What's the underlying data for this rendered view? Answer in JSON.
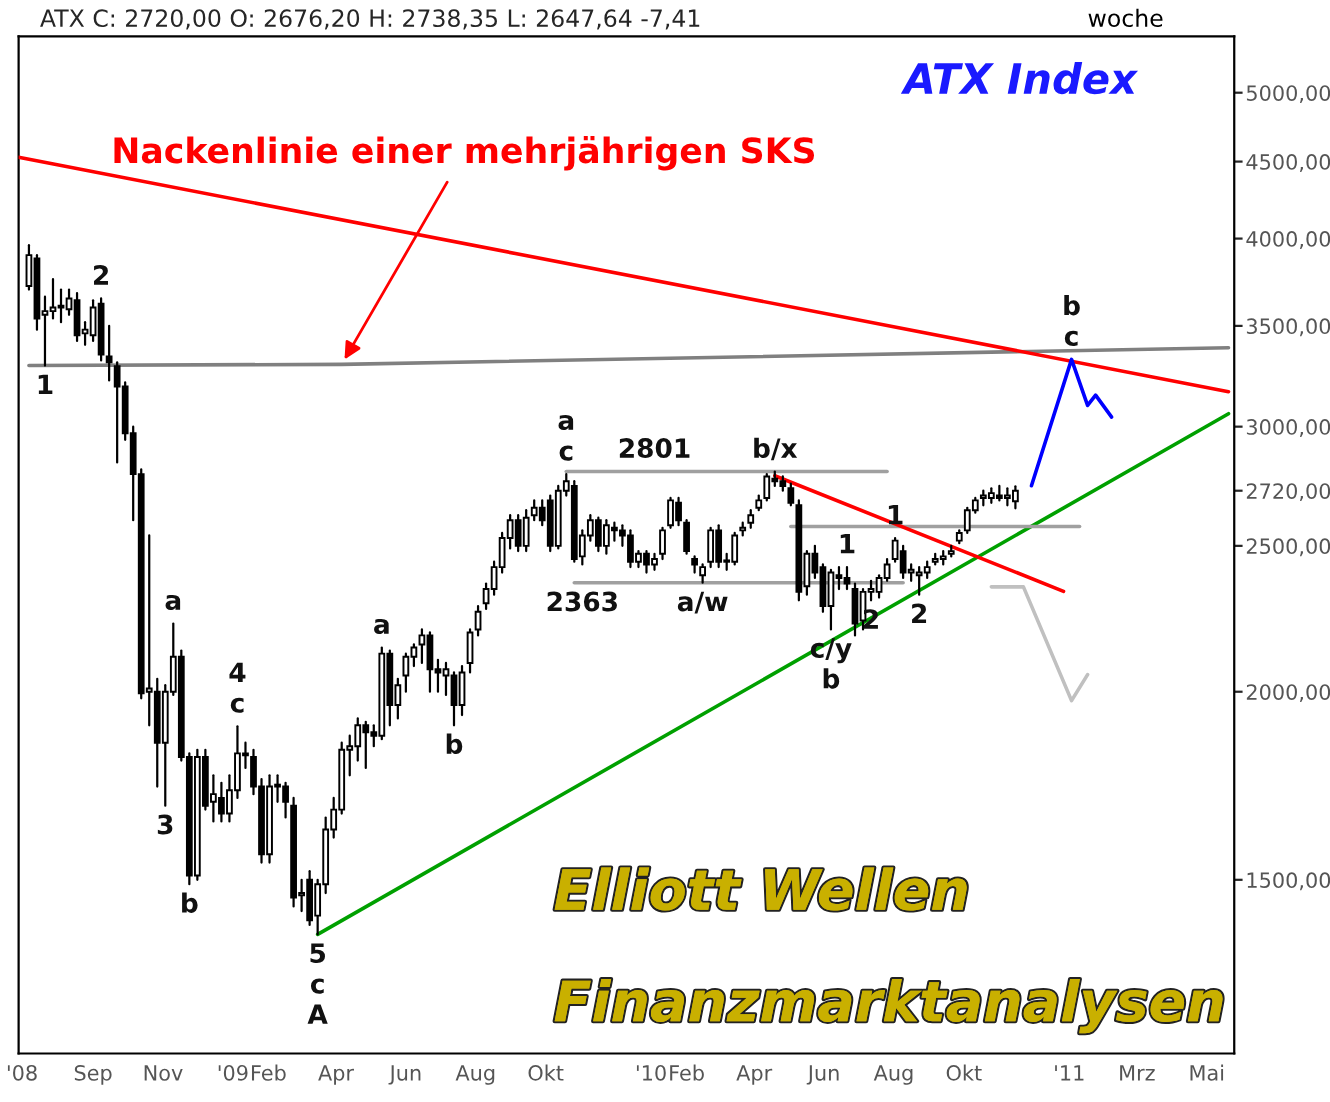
{
  "chart_data": {
    "type": "candlestick",
    "title": "ATX Index",
    "subtitle": "ATX C: 2720,00 O: 2676,20 H: 2738,35 L: 2647,64 -7,41",
    "x": [
      "2008-07-07",
      "2008-07-14",
      "2008-07-21",
      "2008-07-28",
      "2008-08-04",
      "2008-08-11",
      "2008-08-18",
      "2008-08-25",
      "2008-09-01",
      "2008-09-08",
      "2008-09-15",
      "2008-09-22",
      "2008-09-29",
      "2008-10-06",
      "2008-10-13",
      "2008-10-20",
      "2008-10-27",
      "2008-11-03",
      "2008-11-10",
      "2008-11-17",
      "2008-11-24",
      "2008-12-01",
      "2008-12-08",
      "2008-12-15",
      "2008-12-22",
      "2008-12-29",
      "2009-01-05",
      "2009-01-12",
      "2009-01-19",
      "2009-01-26",
      "2009-02-02",
      "2009-02-09",
      "2009-02-16",
      "2009-02-23",
      "2009-03-02",
      "2009-03-09",
      "2009-03-16",
      "2009-03-23",
      "2009-03-30",
      "2009-04-06",
      "2009-04-13",
      "2009-04-20",
      "2009-04-27",
      "2009-05-04",
      "2009-05-11",
      "2009-05-18",
      "2009-05-25",
      "2009-06-01",
      "2009-06-08",
      "2009-06-15",
      "2009-06-22",
      "2009-06-29",
      "2009-07-06",
      "2009-07-13",
      "2009-07-20",
      "2009-07-27",
      "2009-08-03",
      "2009-08-10",
      "2009-08-17",
      "2009-08-24",
      "2009-08-31",
      "2009-09-07",
      "2009-09-14",
      "2009-09-21",
      "2009-09-28",
      "2009-10-05",
      "2009-10-12",
      "2009-10-19",
      "2009-10-26",
      "2009-11-02",
      "2009-11-09",
      "2009-11-16",
      "2009-11-23",
      "2009-11-30",
      "2009-12-07",
      "2009-12-14",
      "2009-12-21",
      "2009-12-28",
      "2010-01-04",
      "2010-01-11",
      "2010-01-18",
      "2010-01-25",
      "2010-02-01",
      "2010-02-08",
      "2010-02-15",
      "2010-02-22",
      "2010-03-01",
      "2010-03-08",
      "2010-03-15",
      "2010-03-22",
      "2010-03-29",
      "2010-04-05",
      "2010-04-12",
      "2010-04-19",
      "2010-04-26",
      "2010-05-03",
      "2010-05-10",
      "2010-05-17",
      "2010-05-24",
      "2010-05-31",
      "2010-06-07",
      "2010-06-14",
      "2010-06-21",
      "2010-06-28",
      "2010-07-05",
      "2010-07-12",
      "2010-07-19",
      "2010-07-26",
      "2010-08-02",
      "2010-08-09",
      "2010-08-16",
      "2010-08-23",
      "2010-08-30",
      "2010-09-06",
      "2010-09-13",
      "2010-09-20",
      "2010-09-27",
      "2010-10-04",
      "2010-10-11",
      "2010-10-18",
      "2010-10-25",
      "2010-11-01",
      "2010-11-08",
      "2010-11-15"
    ],
    "ohlc": [
      [
        3720,
        3960,
        3700,
        3900
      ],
      [
        3880,
        3900,
        3480,
        3540
      ],
      [
        3560,
        3660,
        3294,
        3580
      ],
      [
        3580,
        3760,
        3540,
        3600
      ],
      [
        3600,
        3700,
        3520,
        3610
      ],
      [
        3590,
        3700,
        3560,
        3650
      ],
      [
        3640,
        3680,
        3420,
        3450
      ],
      [
        3460,
        3520,
        3400,
        3480
      ],
      [
        3450,
        3640,
        3420,
        3600
      ],
      [
        3620,
        3650,
        3320,
        3350
      ],
      [
        3340,
        3500,
        3220,
        3310
      ],
      [
        3290,
        3310,
        2840,
        3190
      ],
      [
        3190,
        3210,
        2940,
        2970
      ],
      [
        2970,
        3000,
        2600,
        2790
      ],
      [
        2790,
        2810,
        1980,
        1995
      ],
      [
        2000,
        2540,
        1900,
        2010
      ],
      [
        2000,
        2040,
        1730,
        1850
      ],
      [
        1850,
        2020,
        1680,
        2000
      ],
      [
        2000,
        2220,
        1990,
        2110
      ],
      [
        2110,
        2130,
        1800,
        1810
      ],
      [
        1810,
        1820,
        1490,
        1510
      ],
      [
        1510,
        1830,
        1500,
        1810
      ],
      [
        1810,
        1830,
        1670,
        1680
      ],
      [
        1690,
        1760,
        1640,
        1710
      ],
      [
        1700,
        1740,
        1640,
        1660
      ],
      [
        1660,
        1760,
        1640,
        1720
      ],
      [
        1720,
        1897,
        1700,
        1820
      ],
      [
        1820,
        1850,
        1780,
        1815
      ],
      [
        1810,
        1830,
        1710,
        1730
      ],
      [
        1730,
        1750,
        1540,
        1560
      ],
      [
        1560,
        1760,
        1540,
        1730
      ],
      [
        1730,
        1760,
        1690,
        1735
      ],
      [
        1730,
        1740,
        1650,
        1690
      ],
      [
        1680,
        1700,
        1440,
        1460
      ],
      [
        1465,
        1500,
        1430,
        1470
      ],
      [
        1500,
        1520,
        1400,
        1410
      ],
      [
        1420,
        1500,
        1380,
        1490
      ],
      [
        1490,
        1650,
        1470,
        1620
      ],
      [
        1620,
        1700,
        1600,
        1670
      ],
      [
        1670,
        1850,
        1660,
        1830
      ],
      [
        1830,
        1870,
        1760,
        1840
      ],
      [
        1840,
        1920,
        1800,
        1900
      ],
      [
        1900,
        1910,
        1780,
        1880
      ],
      [
        1880,
        1900,
        1840,
        1870
      ],
      [
        1870,
        2140,
        1860,
        2120
      ],
      [
        2120,
        2130,
        1900,
        1960
      ],
      [
        1960,
        2040,
        1920,
        2020
      ],
      [
        2050,
        2120,
        2000,
        2110
      ],
      [
        2110,
        2150,
        2080,
        2140
      ],
      [
        2150,
        2200,
        2090,
        2180
      ],
      [
        2180,
        2190,
        2000,
        2070
      ],
      [
        2070,
        2100,
        2000,
        2060
      ],
      [
        2050,
        2090,
        1990,
        2070
      ],
      [
        2050,
        2060,
        1900,
        1960
      ],
      [
        1960,
        2080,
        1930,
        2060
      ],
      [
        2090,
        2200,
        2060,
        2190
      ],
      [
        2200,
        2280,
        2180,
        2260
      ],
      [
        2290,
        2360,
        2270,
        2340
      ],
      [
        2340,
        2440,
        2320,
        2420
      ],
      [
        2420,
        2550,
        2400,
        2530
      ],
      [
        2530,
        2620,
        2490,
        2600
      ],
      [
        2600,
        2620,
        2480,
        2500
      ],
      [
        2500,
        2640,
        2480,
        2610
      ],
      [
        2620,
        2680,
        2600,
        2650
      ],
      [
        2650,
        2680,
        2580,
        2600
      ],
      [
        2680,
        2700,
        2480,
        2500
      ],
      [
        2500,
        2740,
        2490,
        2720
      ],
      [
        2720,
        2790,
        2700,
        2760
      ],
      [
        2740,
        2760,
        2440,
        2450
      ],
      [
        2460,
        2560,
        2430,
        2540
      ],
      [
        2540,
        2620,
        2520,
        2600
      ],
      [
        2600,
        2610,
        2480,
        2500
      ],
      [
        2500,
        2600,
        2470,
        2580
      ],
      [
        2570,
        2590,
        2520,
        2560
      ],
      [
        2560,
        2580,
        2500,
        2540
      ],
      [
        2540,
        2560,
        2420,
        2440
      ],
      [
        2440,
        2480,
        2420,
        2470
      ],
      [
        2470,
        2480,
        2400,
        2430
      ],
      [
        2430,
        2470,
        2410,
        2450
      ],
      [
        2470,
        2570,
        2450,
        2560
      ],
      [
        2580,
        2690,
        2570,
        2680
      ],
      [
        2670,
        2690,
        2580,
        2600
      ],
      [
        2590,
        2600,
        2470,
        2480
      ],
      [
        2450,
        2460,
        2400,
        2430
      ],
      [
        2390,
        2430,
        2363,
        2420
      ],
      [
        2440,
        2570,
        2420,
        2560
      ],
      [
        2560,
        2580,
        2420,
        2440
      ],
      [
        2440,
        2470,
        2410,
        2445
      ],
      [
        2440,
        2550,
        2430,
        2540
      ],
      [
        2560,
        2590,
        2540,
        2570
      ],
      [
        2590,
        2640,
        2570,
        2620
      ],
      [
        2650,
        2700,
        2640,
        2680
      ],
      [
        2690,
        2790,
        2680,
        2780
      ],
      [
        2770,
        2801,
        2740,
        2760
      ],
      [
        2760,
        2780,
        2720,
        2740
      ],
      [
        2730,
        2750,
        2660,
        2670
      ],
      [
        2660,
        2680,
        2300,
        2330
      ],
      [
        2350,
        2480,
        2320,
        2470
      ],
      [
        2470,
        2500,
        2380,
        2400
      ],
      [
        2420,
        2430,
        2260,
        2280
      ],
      [
        2280,
        2410,
        2200,
        2400
      ],
      [
        2390,
        2420,
        2340,
        2380
      ],
      [
        2380,
        2420,
        2340,
        2360
      ],
      [
        2340,
        2360,
        2180,
        2220
      ],
      [
        2230,
        2340,
        2200,
        2330
      ],
      [
        2330,
        2370,
        2300,
        2340
      ],
      [
        2330,
        2390,
        2310,
        2380
      ],
      [
        2380,
        2450,
        2370,
        2430
      ],
      [
        2450,
        2530,
        2440,
        2520
      ],
      [
        2480,
        2500,
        2380,
        2400
      ],
      [
        2400,
        2430,
        2370,
        2410
      ],
      [
        2390,
        2420,
        2320,
        2400
      ],
      [
        2400,
        2440,
        2380,
        2420
      ],
      [
        2440,
        2470,
        2430,
        2450
      ],
      [
        2450,
        2480,
        2430,
        2460
      ],
      [
        2470,
        2500,
        2460,
        2480
      ],
      [
        2520,
        2560,
        2510,
        2550
      ],
      [
        2560,
        2650,
        2550,
        2640
      ],
      [
        2640,
        2690,
        2630,
        2680
      ],
      [
        2690,
        2720,
        2660,
        2700
      ],
      [
        2690,
        2730,
        2670,
        2710
      ],
      [
        2700,
        2740,
        2680,
        2690
      ],
      [
        2690,
        2730,
        2660,
        2700
      ],
      [
        2676.2,
        2738.35,
        2647.64,
        2720
      ]
    ],
    "series": [
      {
        "type": "line",
        "color": "#808080",
        "x": [
          "2008-07-07",
          "2009-04-06",
          "2011-05-20"
        ],
        "values": [
          3294,
          3300,
          3385
        ]
      },
      {
        "type": "line",
        "color": "#ff0000",
        "x": [
          "2008-06-28",
          "2011-05-20"
        ],
        "values": [
          4530,
          3165
        ]
      },
      {
        "type": "line",
        "color": "#00a000",
        "x": [
          "2009-03-16",
          "2011-05-20"
        ],
        "values": [
          1380,
          3060
        ]
      },
      {
        "type": "line",
        "color": "#a0a0a0",
        "x": [
          "2009-10-19",
          "2010-07-26"
        ],
        "values": [
          2801,
          2801
        ]
      },
      {
        "type": "line",
        "color": "#a0a0a0",
        "x": [
          "2009-10-26",
          "2010-08-09"
        ],
        "values": [
          2363,
          2363
        ]
      },
      {
        "type": "line",
        "color": "#a0a0a0",
        "x": [
          "2010-05-03",
          "2011-01-10"
        ],
        "values": [
          2575,
          2575
        ]
      },
      {
        "type": "line",
        "color": "#ff0000",
        "x": [
          "2010-04-19",
          "2010-12-27"
        ],
        "values": [
          2783,
          2332
        ]
      },
      {
        "type": "line",
        "color": "#0000ff",
        "x": [
          "2010-11-29",
          "2011-01-03",
          "2011-01-17",
          "2011-01-24",
          "2011-02-07"
        ],
        "values": [
          2741,
          3325,
          3099,
          3148,
          3044
        ]
      },
      {
        "type": "line",
        "color": "#c0c0c0",
        "x": [
          "2010-10-25",
          "2010-11-22",
          "2011-01-03",
          "2011-01-17"
        ],
        "values": [
          2348,
          2348,
          1973,
          2053
        ]
      }
    ],
    "annotations": [
      {
        "text": "Nackenlinie einer mehrjährigen SKS",
        "x": "2009-04-06",
        "y": 3300
      },
      {
        "text": "1",
        "x": "2008-07-21",
        "y": 3294
      },
      {
        "text": "2",
        "x": "2008-09-08",
        "y": 3650
      },
      {
        "text": "3",
        "x": "2008-11-03",
        "y": 1680
      },
      {
        "text": "a",
        "x": "2008-11-10",
        "y": 2220
      },
      {
        "text": "b",
        "x": "2008-11-24",
        "y": 1490
      },
      {
        "text": "c",
        "x": "2009-01-05",
        "y": 1897
      },
      {
        "text": "4",
        "x": "2009-01-05",
        "y": 1897
      },
      {
        "text": "5",
        "x": "2009-03-16",
        "y": 1380
      },
      {
        "text": "c",
        "x": "2009-03-16",
        "y": 1380
      },
      {
        "text": "A",
        "x": "2009-03-16",
        "y": 1380
      },
      {
        "text": "a",
        "x": "2009-05-11",
        "y": 2140
      },
      {
        "text": "b",
        "x": "2009-07-13",
        "y": 1900
      },
      {
        "text": "c",
        "x": "2009-10-19",
        "y": 2790
      },
      {
        "text": "a",
        "x": "2009-10-19",
        "y": 2790
      },
      {
        "text": "2801",
        "x": "2010-01-04",
        "y": 2801
      },
      {
        "text": "2363",
        "x": "2009-11-02",
        "y": 2363
      },
      {
        "text": "a/w",
        "x": "2010-02-15",
        "y": 2363
      },
      {
        "text": "b/x",
        "x": "2010-04-19",
        "y": 2801
      },
      {
        "text": "1",
        "x": "2010-06-21",
        "y": 2420
      },
      {
        "text": "2",
        "x": "2010-07-12",
        "y": 2300
      },
      {
        "text": "c/y",
        "x": "2010-06-07",
        "y": 2200
      },
      {
        "text": "b",
        "x": "2010-06-07",
        "y": 2200
      },
      {
        "text": "1",
        "x": "2010-08-02",
        "y": 2530
      },
      {
        "text": "2",
        "x": "2010-08-23",
        "y": 2320
      },
      {
        "text": "c",
        "x": "2011-01-03",
        "y": 3325
      },
      {
        "text": "b",
        "x": "2011-01-03",
        "y": 3325
      },
      "woche",
      "Elliott Wellen",
      "Finanzmarktanalysen"
    ],
    "log": true,
    "xlim": [
      "2008-06-28",
      "2011-05-25"
    ],
    "xticks": [
      {
        "value": "2008-07-01",
        "label": "'08"
      },
      {
        "value": "2008-09-01",
        "label": "Sep"
      },
      {
        "value": "2008-11-01",
        "label": "Nov"
      },
      {
        "value": "2009-01-01",
        "label": "'09"
      },
      {
        "value": "2009-02-01",
        "label": "Feb"
      },
      {
        "value": "2009-04-01",
        "label": "Apr"
      },
      {
        "value": "2009-06-01",
        "label": "Jun"
      },
      {
        "value": "2009-08-01",
        "label": "Aug"
      },
      {
        "value": "2009-10-01",
        "label": "Okt"
      },
      {
        "value": "2010-01-01",
        "label": "'10"
      },
      {
        "value": "2010-02-01",
        "label": "Feb"
      },
      {
        "value": "2010-04-01",
        "label": "Apr"
      },
      {
        "value": "2010-06-01",
        "label": "Jun"
      },
      {
        "value": "2010-08-01",
        "label": "Aug"
      },
      {
        "value": "2010-10-01",
        "label": "Okt"
      },
      {
        "value": "2011-01-01",
        "label": "'11"
      },
      {
        "value": "2011-03-01",
        "label": "Mrz"
      },
      {
        "value": "2011-05-01",
        "label": "Mai"
      }
    ],
    "ylim": [
      1150,
      5450
    ],
    "yticks": [
      {
        "value": 1500,
        "label": "1500,00"
      },
      {
        "value": 2000,
        "label": "2000,00"
      },
      {
        "value": 2500,
        "label": "2500,00"
      },
      {
        "value": 2720,
        "label": "2720,00"
      },
      {
        "value": 3000,
        "label": "3000,00"
      },
      {
        "value": 3500,
        "label": "3500,00"
      },
      {
        "value": 4000,
        "label": "4000,00"
      },
      {
        "value": 4500,
        "label": "4500,00"
      },
      {
        "value": 5000,
        "label": "5000,00"
      }
    ]
  }
}
